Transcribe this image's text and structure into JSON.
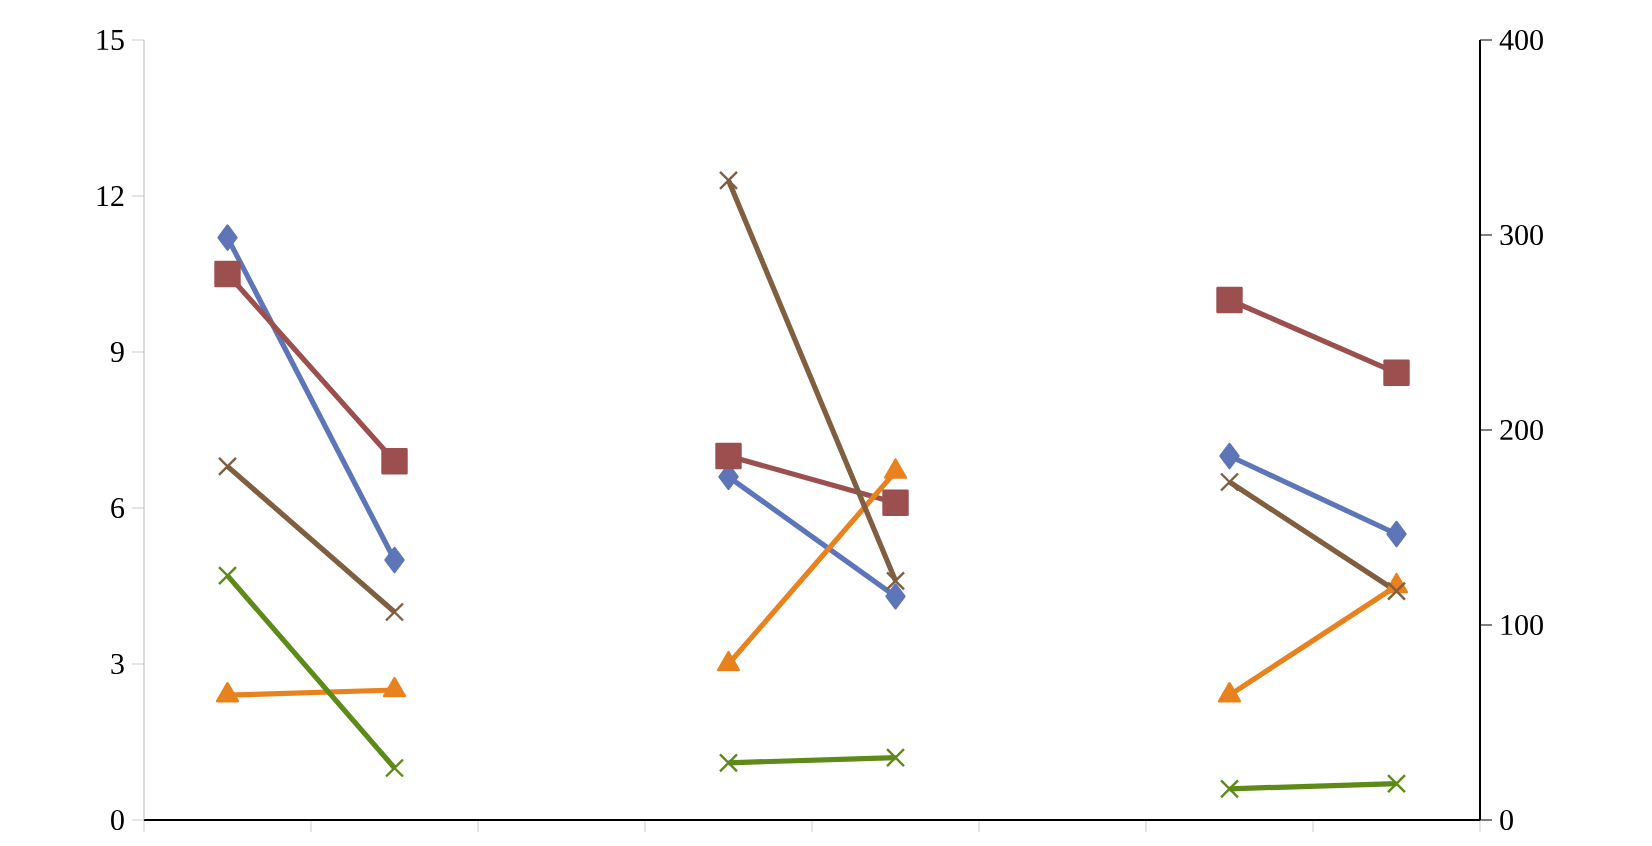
{
  "chart_data": {
    "type": "line",
    "categories": [
      null,
      null,
      null,
      null,
      null,
      null,
      null,
      null
    ],
    "series": [
      {
        "color": "#5e75b8",
        "marker": "diamond",
        "values": [
          11.2,
          5.0,
          null,
          6.6,
          4.3,
          null,
          7.0,
          5.5
        ]
      },
      {
        "color": "#9c4f4f",
        "marker": "square",
        "values": [
          10.5,
          6.9,
          null,
          7.0,
          6.1,
          null,
          10.0,
          8.6
        ]
      },
      {
        "color": "#e8821e",
        "marker": "triangle",
        "values": [
          2.4,
          2.5,
          null,
          3.0,
          6.7,
          null,
          2.4,
          4.5
        ]
      },
      {
        "color": "#5e8a1a",
        "marker": "cross",
        "values": [
          4.7,
          1.0,
          null,
          1.1,
          1.2,
          null,
          0.6,
          0.7
        ]
      },
      {
        "color": "#7f5f40",
        "marker": "cross",
        "values": [
          6.8,
          4.0,
          null,
          12.3,
          4.6,
          null,
          6.5,
          4.4
        ]
      }
    ],
    "ylim": [
      0,
      15
    ],
    "yticks": [
      0,
      3,
      6,
      9,
      12,
      15
    ],
    "y2lim": [
      0,
      400
    ],
    "y2ticks": [
      0,
      100,
      200,
      300,
      400
    ]
  }
}
